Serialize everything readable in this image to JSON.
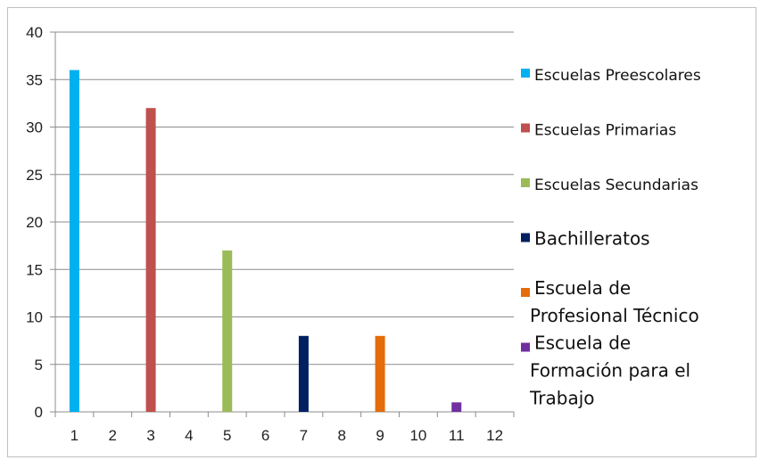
{
  "chart_data": {
    "type": "bar",
    "categories": [
      "1",
      "2",
      "3",
      "4",
      "5",
      "6",
      "7",
      "8",
      "9",
      "10",
      "11",
      "12"
    ],
    "ylim": [
      0,
      40
    ],
    "yticks": [
      0,
      5,
      10,
      15,
      20,
      25,
      30,
      35,
      40
    ],
    "grid": true,
    "legend_position": "right",
    "series": [
      {
        "name": "Escuelas Preescolares",
        "category": "1",
        "value": 36,
        "color": "#00b0f0"
      },
      {
        "name": "Escuelas Primarias",
        "category": "3",
        "value": 32,
        "color": "#c0504d"
      },
      {
        "name": "Escuelas Secundarias",
        "category": "5",
        "value": 17,
        "color": "#9bbb59"
      },
      {
        "name": "Bachilleratos",
        "category": "7",
        "value": 8,
        "color": "#002060"
      },
      {
        "name": "Escuela de Profesional Técnico",
        "lines": [
          "Escuela de",
          "Profesional Técnico"
        ],
        "category": "9",
        "value": 8,
        "color": "#e46c0a"
      },
      {
        "name": "Escuela de Formación para el Trabajo",
        "lines": [
          "Escuela de",
          "Formación para el",
          "Trabajo"
        ],
        "category": "11",
        "value": 1,
        "color": "#7030a0"
      }
    ]
  }
}
